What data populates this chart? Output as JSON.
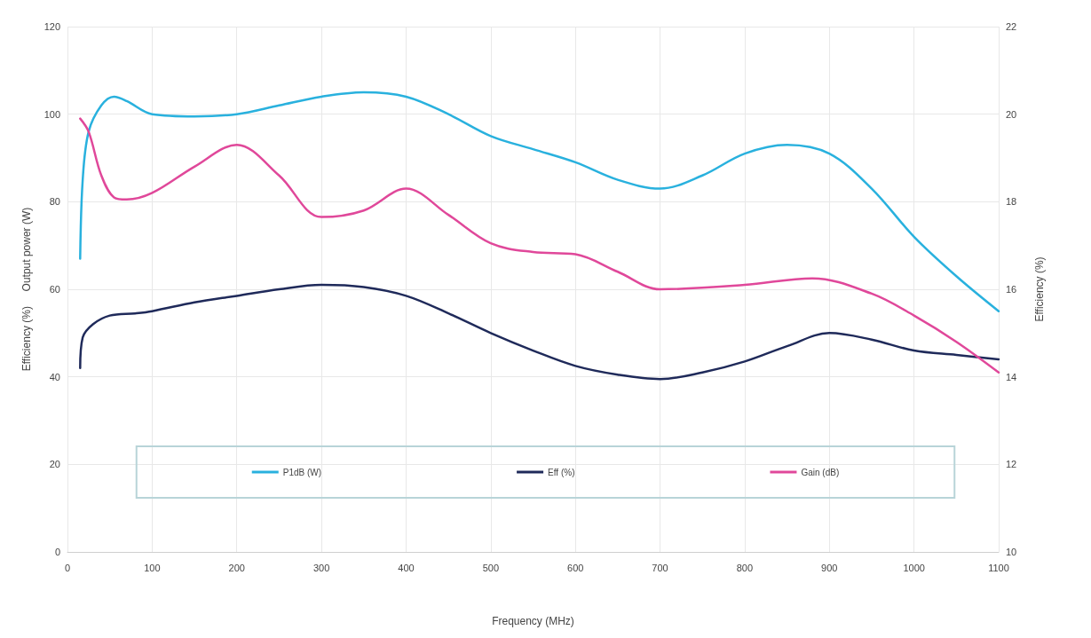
{
  "chart_data": {
    "type": "line",
    "xlabel": "Frequency (MHz)",
    "ylabel": "Efficiency (%)     Output power (W)",
    "y2label": "Efficiency (%)",
    "xlim": [
      0,
      1100
    ],
    "xticks": [
      0,
      100,
      200,
      300,
      400,
      500,
      600,
      700,
      800,
      900,
      1000,
      1100
    ],
    "ylim": [
      0,
      120
    ],
    "yticks": [
      0,
      20,
      40,
      60,
      80,
      100,
      120
    ],
    "y2lim": [
      10,
      22
    ],
    "y2ticks": [
      10,
      12,
      14,
      16,
      18,
      20,
      22
    ],
    "grid": true,
    "legend": "bottom",
    "marker": "none",
    "line_style": "solid",
    "series": [
      {
        "name": "P1dB (W)",
        "color": "#29b1de",
        "x": [
          15,
          18,
          25,
          40,
          55,
          70,
          100,
          150,
          200,
          250,
          300,
          350,
          400,
          450,
          500,
          550,
          600,
          650,
          700,
          750,
          800,
          850,
          900,
          950,
          1000,
          1050,
          1100
        ],
        "values": [
          67,
          85,
          96,
          102,
          104,
          103,
          100,
          99.5,
          100,
          102,
          104,
          105,
          104,
          100,
          95,
          92,
          89,
          85,
          83,
          86,
          91,
          93,
          91,
          83,
          72,
          63,
          55
        ]
      },
      {
        "name": "Eff (%)",
        "color": "#1f2a5a",
        "x": [
          15,
          18,
          30,
          50,
          80,
          100,
          150,
          200,
          250,
          300,
          350,
          400,
          450,
          500,
          550,
          600,
          650,
          700,
          750,
          800,
          850,
          900,
          950,
          1000,
          1050,
          1100
        ],
        "values": [
          42,
          49,
          52,
          54,
          54.5,
          55,
          57,
          58.5,
          60,
          61,
          60.5,
          58.5,
          54.5,
          50,
          46,
          42.5,
          40.5,
          39.5,
          41,
          43.5,
          47,
          50,
          48.5,
          46,
          45,
          44
        ]
      },
      {
        "name": "Gain (dB)",
        "color": "#e0489a",
        "axis": "y2",
        "x": [
          15,
          25,
          40,
          55,
          70,
          100,
          150,
          200,
          250,
          300,
          350,
          400,
          450,
          500,
          550,
          600,
          650,
          700,
          800,
          880,
          950,
          1000,
          1050,
          1100
        ],
        "values": [
          19.9,
          19.6,
          18.6,
          18.1,
          18.05,
          18.2,
          18.8,
          19.3,
          18.6,
          17.65,
          17.8,
          18.3,
          17.7,
          17.05,
          16.85,
          16.8,
          16.4,
          16.0,
          16.1,
          16.25,
          15.9,
          15.4,
          14.8,
          14.1
        ]
      }
    ]
  }
}
